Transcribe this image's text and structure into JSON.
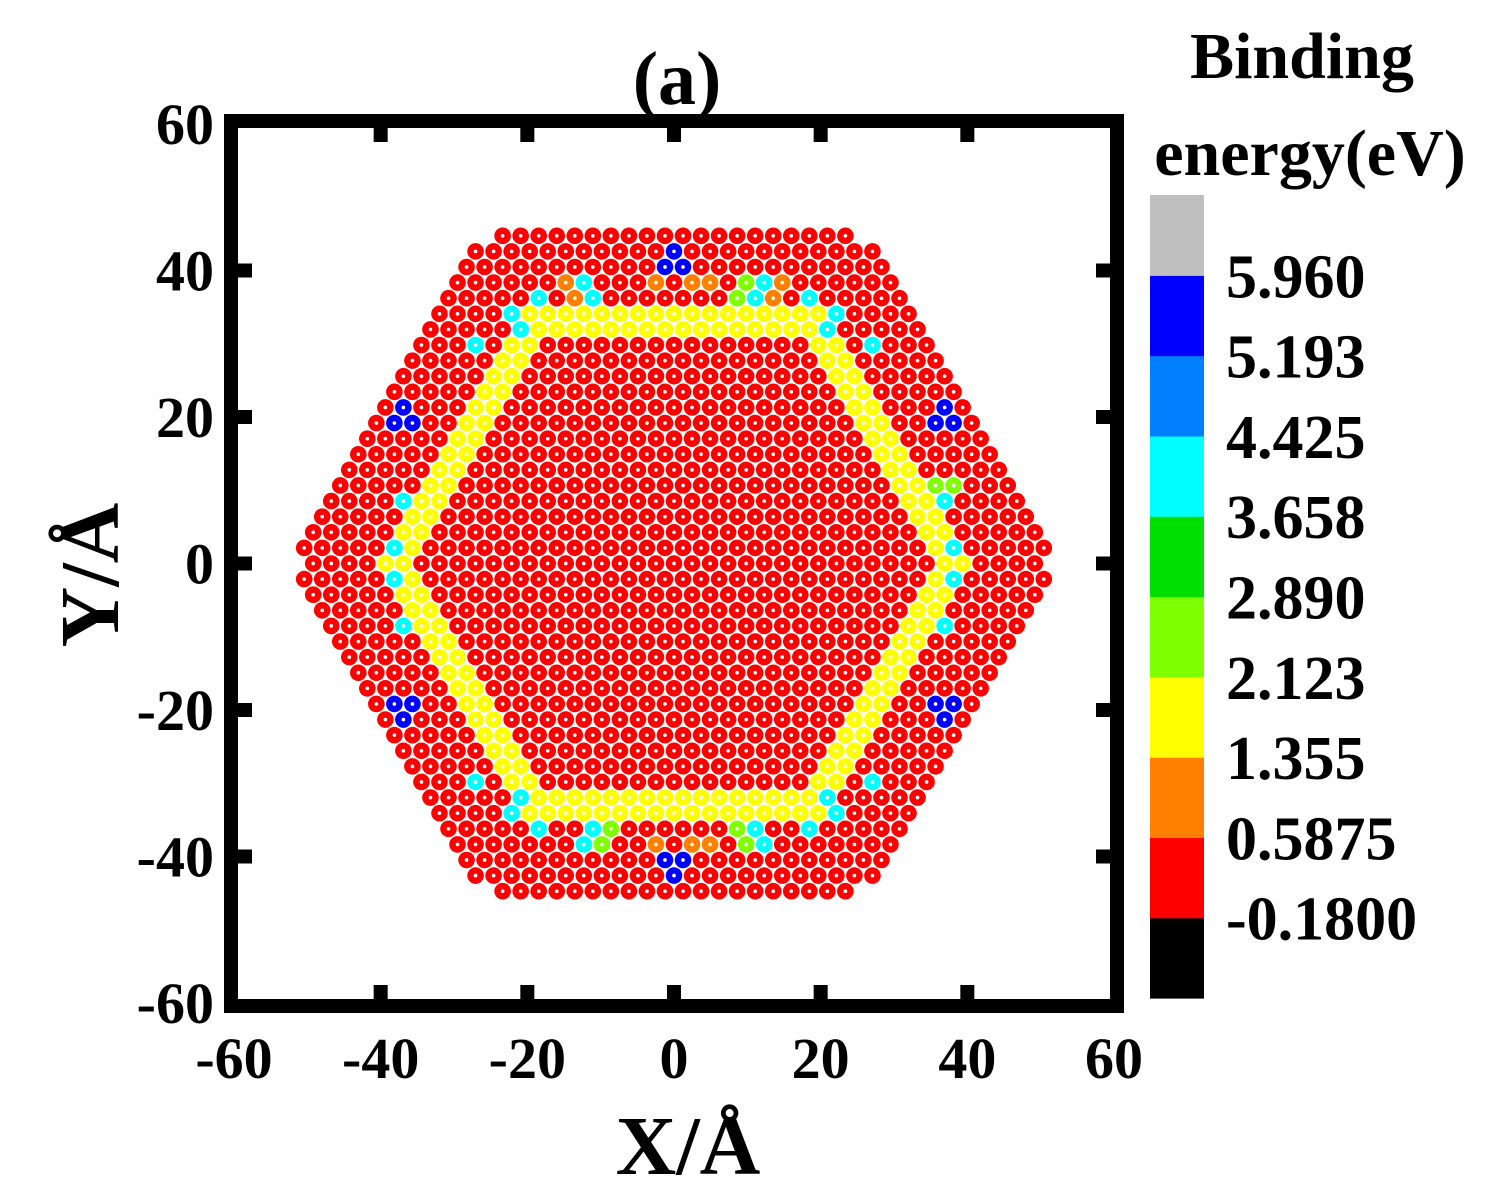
{
  "chart_data": {
    "type": "scatter",
    "panel_label": "(a)",
    "xlabel": "X/Å",
    "ylabel": "Y/Å",
    "xlim": [
      -60,
      60
    ],
    "ylim": [
      -60,
      60
    ],
    "xticks": [
      -60,
      -40,
      -20,
      0,
      20,
      40,
      60
    ],
    "yticks": [
      -60,
      -40,
      -20,
      0,
      20,
      40,
      60
    ],
    "xtick_labels": [
      "-60",
      "-40",
      "-20",
      "0",
      "20",
      "40",
      "60"
    ],
    "ytick_labels": [
      "-60",
      "-40",
      "-20",
      "0",
      "20",
      "40",
      "60"
    ],
    "colorbar": {
      "title_line1": "Binding",
      "title_line2": "energy(eV)",
      "levels": [
        "-0.1800",
        "0.5875",
        "1.355",
        "2.123",
        "2.890",
        "3.658",
        "4.425",
        "5.193",
        "5.960"
      ],
      "colors": [
        "#000000",
        "#ff0000",
        "#ff8000",
        "#ffff00",
        "#80ff00",
        "#00e000",
        "#00ffff",
        "#0080ff",
        "#0000ff",
        "#c0c0c0"
      ]
    },
    "structure": {
      "description_values_in_angstrom": true,
      "atom_spacing": 2.46,
      "outer_radius": 49.0,
      "flake_shape": "hexagonal flake with truncated corners",
      "ring_circumradius": 38.5,
      "ring_thickness": 3.2,
      "ring_default_band": 3,
      "background_band": 1,
      "ring_special_sites": [
        {
          "x": 0,
          "y": 42,
          "band": 8
        },
        {
          "x": 1.2,
          "y": 40,
          "band": 8
        },
        {
          "x": -1.2,
          "y": 40,
          "band": 8
        },
        {
          "x": -2.5,
          "y": 39.5,
          "band": 2
        },
        {
          "x": 2.5,
          "y": 39.5,
          "band": 2
        },
        {
          "x": 5,
          "y": 39.5,
          "band": 2
        },
        {
          "x": 9,
          "y": 37.5,
          "band": 4
        },
        {
          "x": 11.5,
          "y": 37.5,
          "band": 6
        },
        {
          "x": -11.5,
          "y": 37.5,
          "band": 6
        },
        {
          "x": -14,
          "y": 37.5,
          "band": 2
        },
        {
          "x": 14,
          "y": 37.5,
          "band": 2
        },
        {
          "x": -18,
          "y": 35.5,
          "band": 6
        },
        {
          "x": 18,
          "y": 35.5,
          "band": 6
        },
        {
          "x": -21.5,
          "y": 33,
          "band": 6
        },
        {
          "x": 21.5,
          "y": 33,
          "band": 6
        },
        {
          "x": -26.5,
          "y": 29,
          "band": 6
        },
        {
          "x": 26.5,
          "y": 29,
          "band": 6
        },
        {
          "x": -36,
          "y": 21,
          "band": 8
        },
        {
          "x": -35,
          "y": 20,
          "band": 8
        },
        {
          "x": -37,
          "y": 20,
          "band": 8
        },
        {
          "x": 36,
          "y": 21,
          "band": 8
        },
        {
          "x": 35,
          "y": 20,
          "band": 8
        },
        {
          "x": 37,
          "y": 20,
          "band": 8
        },
        {
          "x": -38,
          "y": 9,
          "band": 6
        },
        {
          "x": 38,
          "y": 9,
          "band": 6
        },
        {
          "x": 37,
          "y": 11,
          "band": 4
        },
        {
          "x": -39,
          "y": 2,
          "band": 6
        },
        {
          "x": 39,
          "y": 2,
          "band": 6
        },
        {
          "x": -39,
          "y": -2,
          "band": 6
        },
        {
          "x": 39,
          "y": -2,
          "band": 6
        },
        {
          "x": -38,
          "y": -9,
          "band": 6
        },
        {
          "x": 38,
          "y": -9,
          "band": 6
        },
        {
          "x": -36,
          "y": -21,
          "band": 8
        },
        {
          "x": -35,
          "y": -20,
          "band": 8
        },
        {
          "x": -37,
          "y": -20,
          "band": 8
        },
        {
          "x": 36,
          "y": -21,
          "band": 8
        },
        {
          "x": 35,
          "y": -20,
          "band": 8
        },
        {
          "x": 37,
          "y": -20,
          "band": 8
        },
        {
          "x": -26.5,
          "y": -29,
          "band": 6
        },
        {
          "x": 26.5,
          "y": -29,
          "band": 6
        },
        {
          "x": -21.5,
          "y": -33,
          "band": 6
        },
        {
          "x": 21.5,
          "y": -33,
          "band": 6
        },
        {
          "x": -18,
          "y": -35.5,
          "band": 6
        },
        {
          "x": 18,
          "y": -35.5,
          "band": 6
        },
        {
          "x": -11.5,
          "y": -37.5,
          "band": 6
        },
        {
          "x": 11.5,
          "y": -37.5,
          "band": 6
        },
        {
          "x": -9,
          "y": -37.5,
          "band": 4
        },
        {
          "x": 9,
          "y": -37.5,
          "band": 4
        },
        {
          "x": -2.5,
          "y": -39.5,
          "band": 2
        },
        {
          "x": 2.5,
          "y": -39.5,
          "band": 2
        },
        {
          "x": 5,
          "y": -39.5,
          "band": 2
        },
        {
          "x": 0,
          "y": -42,
          "band": 8
        },
        {
          "x": 1.2,
          "y": -40,
          "band": 8
        },
        {
          "x": -1.2,
          "y": -40,
          "band": 8
        }
      ]
    }
  }
}
